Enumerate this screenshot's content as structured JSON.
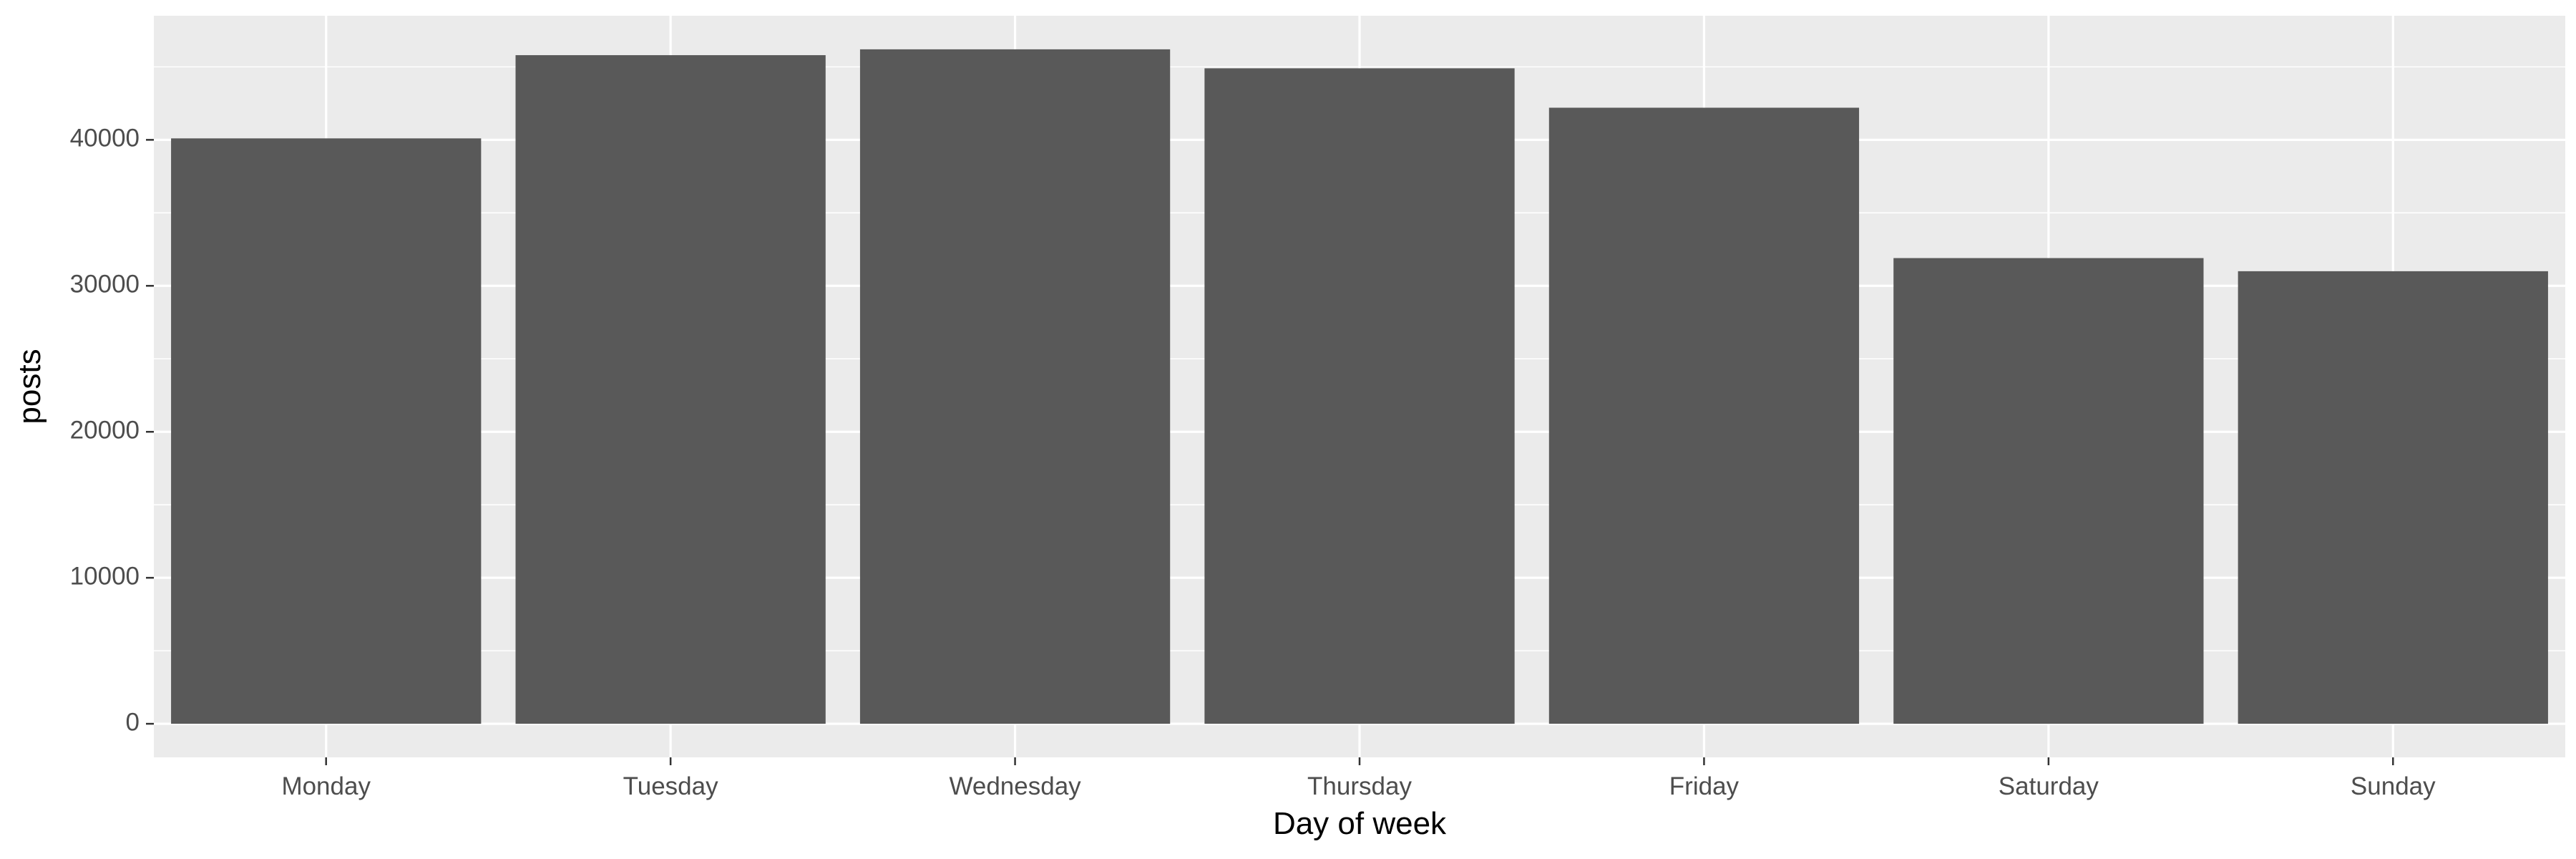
{
  "chart_data": {
    "type": "bar",
    "title": "",
    "xlabel": "Day of week",
    "ylabel": "posts",
    "categories": [
      "Monday",
      "Tuesday",
      "Wednesday",
      "Thursday",
      "Friday",
      "Saturday",
      "Sunday"
    ],
    "values": [
      40100,
      45800,
      46200,
      44900,
      42200,
      31900,
      31000
    ],
    "ylim": [
      -2300,
      48500
    ],
    "yticks": [
      0,
      10000,
      20000,
      30000,
      40000
    ],
    "ytick_labels": [
      "0",
      "10000",
      "20000",
      "30000",
      "40000"
    ],
    "grid": true,
    "legend": "none",
    "colors": {
      "panel_background": "#EBEBEB",
      "gridline": "#FFFFFF",
      "bar_fill": "#595959",
      "tick_label": "#4D4D4D",
      "tick_mark": "#333333",
      "axis_title": "#000000"
    }
  }
}
